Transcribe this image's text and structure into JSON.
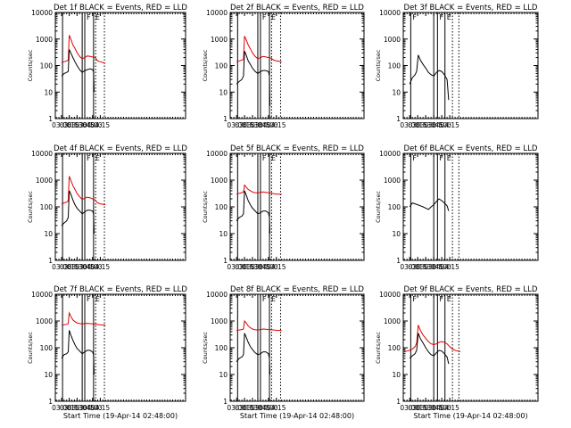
{
  "colors": {
    "events": "#000000",
    "lld": "#e00000",
    "axis": "#000000",
    "background": "#ffffff"
  },
  "chart_data": [
    {
      "type": "line",
      "title": "Det 1f BLACK = Events, RED = LLD",
      "xlabel": "",
      "ylabel": "Counts/sec",
      "yscale": "log",
      "ylim": [
        1,
        10000
      ],
      "x_ticks": [
        "03:00",
        "03:15",
        "03:30",
        "03:45",
        "04:00",
        "04:15"
      ],
      "y_ticks": [
        "1",
        "10",
        "100",
        "1000",
        "10000"
      ],
      "vlines_solid": [
        "03:02",
        "03:40",
        "03:45",
        "04:02"
      ],
      "vlines_dotted": [
        "04:06",
        "04:23"
      ],
      "labels": [
        "F",
        "E"
      ],
      "series": [
        {
          "name": "",
          "color": "#e00000",
          "x": [
            "03:00",
            "03:05",
            "03:10",
            "03:13",
            "03:15",
            "03:18",
            "03:22",
            "03:26",
            "03:30",
            "03:35",
            "03:40",
            "03:45",
            "03:50",
            "03:55",
            "04:00",
            "04:05",
            "04:10",
            "04:15",
            "04:20",
            "04:25"
          ],
          "values": [
            130,
            140,
            150,
            160,
            1400,
            1000,
            600,
            450,
            310,
            220,
            180,
            200,
            230,
            220,
            210,
            200,
            150,
            140,
            130,
            120
          ]
        },
        {
          "name": "",
          "color": "#000000",
          "x": [
            "03:00",
            "03:05",
            "03:10",
            "03:13",
            "03:15",
            "03:18",
            "03:22",
            "03:26",
            "03:30",
            "03:35",
            "03:40",
            "03:45",
            "03:50",
            "03:55",
            "04:00",
            "04:02",
            "04:03"
          ],
          "values": [
            40,
            50,
            55,
            60,
            400,
            300,
            200,
            140,
            100,
            70,
            55,
            65,
            70,
            75,
            70,
            60,
            10
          ]
        }
      ]
    },
    {
      "type": "line",
      "title": "Det 2f BLACK = Events, RED = LLD",
      "xlabel": "",
      "ylabel": "Counts/sec",
      "yscale": "log",
      "ylim": [
        1,
        10000
      ],
      "x_ticks": [
        "03:00",
        "03:15",
        "03:30",
        "03:45",
        "04:00",
        "04:15"
      ],
      "y_ticks": [
        "1",
        "10",
        "100",
        "1000",
        "10000"
      ],
      "vlines_solid": [
        "03:02",
        "03:40",
        "03:45",
        "04:02"
      ],
      "vlines_dotted": [
        "04:06",
        "04:23"
      ],
      "labels": [
        "F",
        "E"
      ],
      "series": [
        {
          "name": "",
          "color": "#e00000",
          "x": [
            "03:00",
            "03:05",
            "03:10",
            "03:13",
            "03:15",
            "03:18",
            "03:22",
            "03:26",
            "03:30",
            "03:35",
            "03:40",
            "03:45",
            "03:50",
            "03:55",
            "04:00",
            "04:05",
            "04:10",
            "04:15",
            "04:20",
            "04:25"
          ],
          "values": [
            140,
            150,
            160,
            170,
            1300,
            950,
            600,
            430,
            300,
            220,
            180,
            200,
            220,
            210,
            200,
            190,
            160,
            150,
            145,
            140
          ]
        },
        {
          "name": "",
          "color": "#000000",
          "x": [
            "03:00",
            "03:05",
            "03:10",
            "03:13",
            "03:15",
            "03:18",
            "03:22",
            "03:26",
            "03:30",
            "03:35",
            "03:40",
            "03:45",
            "03:50",
            "03:55",
            "04:00",
            "04:02",
            "04:03"
          ],
          "values": [
            20,
            25,
            30,
            40,
            350,
            250,
            150,
            110,
            80,
            60,
            50,
            60,
            65,
            65,
            60,
            40,
            3
          ]
        }
      ]
    },
    {
      "type": "line",
      "title": "Det 3f BLACK = Events, RED = LLD",
      "xlabel": "",
      "ylabel": "Counts/sec",
      "yscale": "log",
      "ylim": [
        1,
        10000
      ],
      "x_ticks": [
        "03:00",
        "03:15",
        "03:30",
        "03:45",
        "04:00",
        "04:15"
      ],
      "y_ticks": [
        "1",
        "10",
        "100",
        "1000",
        "10000"
      ],
      "vlines_solid": [
        "03:02",
        "03:45",
        "03:52",
        "04:06"
      ],
      "vlines_dotted": [
        "04:20",
        "04:32"
      ],
      "labels": [
        "F",
        "F",
        "E"
      ],
      "series": [
        {
          "name": "",
          "color": "#000000",
          "x": [
            "03:00",
            "03:05",
            "03:10",
            "03:13",
            "03:16",
            "03:20",
            "03:25",
            "03:30",
            "03:35",
            "03:40",
            "03:45",
            "03:50",
            "03:55",
            "04:00",
            "04:05",
            "04:10",
            "04:13"
          ],
          "values": [
            20,
            35,
            45,
            60,
            250,
            160,
            110,
            80,
            55,
            45,
            40,
            55,
            65,
            60,
            45,
            30,
            5
          ]
        }
      ]
    },
    {
      "type": "line",
      "title": "Det 4f BLACK = Events, RED = LLD",
      "xlabel": "",
      "ylabel": "Counts/sec",
      "yscale": "log",
      "ylim": [
        1,
        10000
      ],
      "x_ticks": [
        "03:00",
        "03:15",
        "03:30",
        "03:45",
        "04:00",
        "04:15"
      ],
      "y_ticks": [
        "1",
        "10",
        "100",
        "1000",
        "10000"
      ],
      "vlines_solid": [
        "03:02",
        "03:40",
        "03:45",
        "04:02"
      ],
      "vlines_dotted": [
        "04:06",
        "04:23"
      ],
      "labels": [
        "F",
        "E"
      ],
      "series": [
        {
          "name": "",
          "color": "#e00000",
          "x": [
            "03:00",
            "03:05",
            "03:10",
            "03:13",
            "03:15",
            "03:18",
            "03:22",
            "03:26",
            "03:30",
            "03:35",
            "03:40",
            "03:45",
            "03:50",
            "03:55",
            "04:00",
            "04:05",
            "04:10",
            "04:15",
            "04:20",
            "04:25"
          ],
          "values": [
            130,
            140,
            150,
            170,
            1400,
            1000,
            620,
            450,
            320,
            240,
            190,
            210,
            230,
            220,
            200,
            180,
            140,
            130,
            125,
            120
          ]
        },
        {
          "name": "",
          "color": "#000000",
          "x": [
            "03:00",
            "03:05",
            "03:10",
            "03:13",
            "03:15",
            "03:18",
            "03:22",
            "03:26",
            "03:30",
            "03:35",
            "03:40",
            "03:45",
            "03:50",
            "03:55",
            "04:00",
            "04:02",
            "04:03"
          ],
          "values": [
            20,
            25,
            30,
            40,
            400,
            300,
            180,
            120,
            90,
            70,
            55,
            65,
            75,
            75,
            70,
            55,
            10
          ]
        }
      ]
    },
    {
      "type": "line",
      "title": "Det 5f BLACK = Events, RED = LLD",
      "xlabel": "",
      "ylabel": "Counts/sec",
      "yscale": "log",
      "ylim": [
        1,
        10000
      ],
      "x_ticks": [
        "03:00",
        "03:15",
        "03:30",
        "03:45",
        "04:00",
        "04:15"
      ],
      "y_ticks": [
        "1",
        "10",
        "100",
        "1000",
        "10000"
      ],
      "vlines_solid": [
        "03:02",
        "03:40",
        "03:45",
        "04:02"
      ],
      "vlines_dotted": [
        "04:06",
        "04:23"
      ],
      "labels": [
        "F",
        "E"
      ],
      "series": [
        {
          "name": "",
          "color": "#e00000",
          "x": [
            "03:00",
            "03:05",
            "03:10",
            "03:13",
            "03:15",
            "03:18",
            "03:22",
            "03:26",
            "03:30",
            "03:35",
            "03:40",
            "03:45",
            "03:50",
            "03:55",
            "04:00",
            "04:05",
            "04:10",
            "04:15",
            "04:20",
            "04:25"
          ],
          "values": [
            300,
            320,
            340,
            360,
            650,
            550,
            450,
            400,
            360,
            340,
            330,
            350,
            360,
            350,
            340,
            330,
            310,
            300,
            300,
            300
          ]
        },
        {
          "name": "",
          "color": "#000000",
          "x": [
            "03:00",
            "03:05",
            "03:10",
            "03:13",
            "03:15",
            "03:18",
            "03:22",
            "03:26",
            "03:30",
            "03:35",
            "03:40",
            "03:45",
            "03:50",
            "03:55",
            "04:00",
            "04:02",
            "04:03"
          ],
          "values": [
            30,
            40,
            45,
            55,
            400,
            280,
            170,
            120,
            90,
            70,
            55,
            60,
            70,
            70,
            60,
            40,
            10
          ]
        }
      ]
    },
    {
      "type": "line",
      "title": "Det 6f BLACK = Events, RED = LLD",
      "xlabel": "",
      "ylabel": "Counts/sec",
      "yscale": "log",
      "ylim": [
        1,
        10000
      ],
      "x_ticks": [
        "03:00",
        "03:15",
        "03:30",
        "03:45",
        "04:00",
        "04:15"
      ],
      "y_ticks": [
        "1",
        "10",
        "100",
        "1000",
        "10000"
      ],
      "vlines_solid": [
        "03:02",
        "03:45",
        "03:52",
        "04:06"
      ],
      "vlines_dotted": [
        "04:20",
        "04:32"
      ],
      "labels": [
        "F",
        "F",
        "E"
      ],
      "series": [
        {
          "name": "",
          "color": "#000000",
          "x": [
            "03:00",
            "03:05",
            "03:10",
            "03:15",
            "03:20",
            "03:25",
            "03:30",
            "03:35",
            "03:40",
            "03:45",
            "03:50",
            "03:55",
            "04:00",
            "04:05",
            "04:10",
            "04:13"
          ],
          "values": [
            100,
            140,
            130,
            120,
            110,
            100,
            90,
            80,
            100,
            120,
            160,
            200,
            170,
            140,
            110,
            70
          ]
        }
      ]
    },
    {
      "type": "line",
      "title": "Det 7f BLACK = Events, RED = LLD",
      "xlabel": "Start Time (19-Apr-14 02:48:00)",
      "ylabel": "Counts/sec",
      "yscale": "log",
      "ylim": [
        1,
        10000
      ],
      "x_ticks": [
        "03:00",
        "03:15",
        "03:30",
        "03:45",
        "04:00",
        "04:15"
      ],
      "y_ticks": [
        "1",
        "10",
        "100",
        "1000",
        "10000"
      ],
      "vlines_solid": [
        "03:02",
        "03:40",
        "03:45",
        "04:02"
      ],
      "vlines_dotted": [
        "04:06",
        "04:23"
      ],
      "labels": [
        "F",
        "E"
      ],
      "series": [
        {
          "name": "",
          "color": "#e00000",
          "x": [
            "03:00",
            "03:05",
            "03:10",
            "03:13",
            "03:15",
            "03:18",
            "03:22",
            "03:26",
            "03:30",
            "03:35",
            "03:40",
            "03:45",
            "03:50",
            "03:55",
            "04:00",
            "04:05",
            "04:10",
            "04:15",
            "04:20",
            "04:25"
          ],
          "values": [
            700,
            720,
            750,
            800,
            2000,
            1500,
            1100,
            950,
            850,
            800,
            780,
            800,
            820,
            800,
            780,
            760,
            740,
            720,
            710,
            700
          ]
        },
        {
          "name": "",
          "color": "#000000",
          "x": [
            "03:00",
            "03:05",
            "03:10",
            "03:13",
            "03:15",
            "03:18",
            "03:22",
            "03:26",
            "03:30",
            "03:35",
            "03:40",
            "03:45",
            "03:50",
            "03:55",
            "04:00",
            "04:02",
            "04:03"
          ],
          "values": [
            40,
            55,
            60,
            70,
            450,
            300,
            190,
            130,
            95,
            75,
            60,
            70,
            80,
            80,
            70,
            55,
            10
          ]
        }
      ]
    },
    {
      "type": "line",
      "title": "Det 8f BLACK = Events, RED = LLD",
      "xlabel": "Start Time (19-Apr-14 02:48:00)",
      "ylabel": "Counts/sec",
      "yscale": "log",
      "ylim": [
        1,
        10000
      ],
      "x_ticks": [
        "03:00",
        "03:15",
        "03:30",
        "03:45",
        "04:00",
        "04:15"
      ],
      "y_ticks": [
        "1",
        "10",
        "100",
        "1000",
        "10000"
      ],
      "vlines_solid": [
        "03:02",
        "03:40",
        "03:45",
        "04:02"
      ],
      "vlines_dotted": [
        "04:06",
        "04:23"
      ],
      "labels": [
        "F",
        "E"
      ],
      "series": [
        {
          "name": "",
          "color": "#e00000",
          "x": [
            "03:00",
            "03:05",
            "03:10",
            "03:13",
            "03:15",
            "03:18",
            "03:22",
            "03:26",
            "03:30",
            "03:35",
            "03:40",
            "03:45",
            "03:50",
            "03:55",
            "04:00",
            "04:05",
            "04:10",
            "04:15",
            "04:20",
            "04:25"
          ],
          "values": [
            450,
            460,
            480,
            500,
            1000,
            850,
            650,
            560,
            500,
            470,
            460,
            480,
            500,
            490,
            480,
            470,
            460,
            450,
            445,
            440
          ]
        },
        {
          "name": "",
          "color": "#000000",
          "x": [
            "03:00",
            "03:05",
            "03:10",
            "03:13",
            "03:15",
            "03:18",
            "03:22",
            "03:26",
            "03:30",
            "03:35",
            "03:40",
            "03:45",
            "03:50",
            "03:55",
            "04:00",
            "04:02",
            "04:03"
          ],
          "values": [
            30,
            40,
            45,
            55,
            350,
            250,
            160,
            110,
            85,
            65,
            55,
            60,
            70,
            70,
            60,
            40,
            10
          ]
        }
      ]
    },
    {
      "type": "line",
      "title": "Det 9f BLACK = Events, RED = LLD",
      "xlabel": "Start Time (19-Apr-14 02:48:00)",
      "ylabel": "Counts/sec",
      "yscale": "log",
      "ylim": [
        1,
        10000
      ],
      "x_ticks": [
        "03:00",
        "03:15",
        "03:30",
        "03:45",
        "04:00",
        "04:15"
      ],
      "y_ticks": [
        "1",
        "10",
        "100",
        "1000",
        "10000"
      ],
      "vlines_solid": [
        "03:02",
        "03:45",
        "03:52",
        "04:06"
      ],
      "vlines_dotted": [
        "04:20",
        "04:32"
      ],
      "labels": [
        "F",
        "F",
        "E"
      ],
      "series": [
        {
          "name": "",
          "color": "#e00000",
          "x": [
            "02:48",
            "02:55",
            "03:00",
            "03:05",
            "03:10",
            "03:13",
            "03:16",
            "03:20",
            "03:25",
            "03:30",
            "03:35",
            "03:40",
            "03:45",
            "03:50",
            "03:55",
            "04:00",
            "04:05",
            "04:10",
            "04:15",
            "04:20",
            "04:25",
            "04:30",
            "04:35"
          ],
          "values": [
            70,
            75,
            80,
            90,
            110,
            150,
            700,
            450,
            300,
            220,
            170,
            140,
            130,
            140,
            160,
            170,
            160,
            140,
            110,
            90,
            80,
            75,
            70
          ]
        },
        {
          "name": "",
          "color": "#000000",
          "x": [
            "03:00",
            "03:05",
            "03:10",
            "03:13",
            "03:16",
            "03:20",
            "03:25",
            "03:30",
            "03:35",
            "03:40",
            "03:45",
            "03:50",
            "03:55",
            "04:00",
            "04:05",
            "04:10",
            "04:13"
          ],
          "values": [
            40,
            50,
            60,
            80,
            350,
            220,
            150,
            100,
            70,
            55,
            50,
            65,
            80,
            75,
            60,
            45,
            25
          ]
        }
      ]
    }
  ]
}
